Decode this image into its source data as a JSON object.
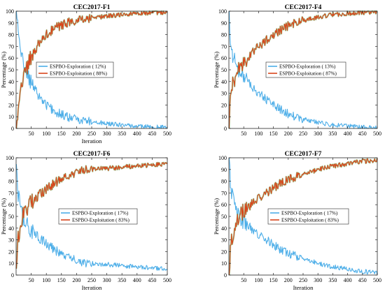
{
  "colors": {
    "exploration": "#4daee8",
    "exploitation": "#d9451b",
    "exploitation_glow": "#4caf50",
    "axis": "#262626"
  },
  "chart_data": [
    {
      "type": "line",
      "title": "CEC2017-F1",
      "xlabel": "Iteration",
      "ylabel": "Percentage (%)",
      "xlim": [
        0,
        500
      ],
      "ylim": [
        0,
        100
      ],
      "xticks": [
        50,
        100,
        150,
        200,
        250,
        300,
        350,
        400,
        450,
        500
      ],
      "yticks": [
        0,
        10,
        20,
        30,
        40,
        50,
        60,
        70,
        80,
        90,
        100
      ],
      "grid": false,
      "legend_position": "center",
      "series": [
        {
          "name": "ESPBO-Exploration ( 12%)",
          "x": [
            1,
            5,
            10,
            20,
            30,
            40,
            50,
            75,
            100,
            125,
            150,
            175,
            200,
            250,
            300,
            350,
            400,
            450,
            500
          ],
          "values": [
            100,
            88,
            76,
            60,
            52,
            45,
            38,
            28,
            20,
            15,
            12,
            9,
            8,
            6,
            4,
            3,
            2,
            1,
            1
          ]
        },
        {
          "name": "ESPBO-Exploitation ( 88%)",
          "x": [
            1,
            5,
            10,
            20,
            30,
            40,
            50,
            75,
            100,
            125,
            150,
            175,
            200,
            250,
            300,
            350,
            400,
            450,
            500
          ],
          "values": [
            0,
            12,
            24,
            40,
            48,
            55,
            62,
            72,
            80,
            85,
            88,
            91,
            92,
            94,
            96,
            97,
            98,
            99,
            99
          ]
        }
      ]
    },
    {
      "type": "line",
      "title": "CEC2017-F4",
      "xlabel": "",
      "ylabel": "Percentage (%)",
      "xlim": [
        0,
        500
      ],
      "ylim": [
        0,
        100
      ],
      "xticks": [
        50,
        100,
        150,
        200,
        250,
        300,
        350,
        400,
        450,
        500
      ],
      "yticks": [
        0,
        10,
        20,
        30,
        40,
        50,
        60,
        70,
        80,
        90,
        100
      ],
      "grid": false,
      "legend_position": "center-right",
      "series": [
        {
          "name": "ESPBO-Exploration ( 13%)",
          "x": [
            1,
            5,
            10,
            20,
            30,
            40,
            50,
            75,
            100,
            125,
            150,
            175,
            200,
            250,
            300,
            350,
            400,
            450,
            500
          ],
          "values": [
            100,
            75,
            65,
            58,
            52,
            48,
            43,
            37,
            30,
            25,
            20,
            16,
            12,
            8,
            5,
            3,
            2,
            1,
            1
          ]
        },
        {
          "name": "ESPBO-Exploitation ( 87%)",
          "x": [
            1,
            5,
            10,
            20,
            30,
            40,
            50,
            75,
            100,
            125,
            150,
            175,
            200,
            250,
            300,
            350,
            400,
            450,
            500
          ],
          "values": [
            0,
            25,
            35,
            42,
            48,
            52,
            57,
            63,
            70,
            75,
            80,
            84,
            88,
            92,
            95,
            97,
            98,
            99,
            99
          ]
        }
      ]
    },
    {
      "type": "line",
      "title": "CEC2017-F6",
      "xlabel": "Iteration",
      "ylabel": "Percentage (%)",
      "xlim": [
        0,
        500
      ],
      "ylim": [
        0,
        100
      ],
      "xticks": [
        50,
        100,
        150,
        200,
        250,
        300,
        350,
        400,
        450,
        500
      ],
      "yticks": [
        0,
        10,
        20,
        30,
        40,
        50,
        60,
        70,
        80,
        90,
        100
      ],
      "grid": false,
      "legend_position": "center",
      "series": [
        {
          "name": "ESPBO-Exploration ( 17%)",
          "x": [
            1,
            5,
            10,
            20,
            30,
            40,
            50,
            75,
            100,
            125,
            150,
            175,
            200,
            250,
            300,
            350,
            400,
            450,
            500
          ],
          "values": [
            100,
            72,
            64,
            50,
            45,
            42,
            38,
            32,
            27,
            22,
            18,
            15,
            12,
            10,
            9,
            8,
            7,
            6,
            6
          ]
        },
        {
          "name": "ESPBO-Exploitation ( 83%)",
          "x": [
            1,
            5,
            10,
            20,
            30,
            40,
            50,
            75,
            100,
            125,
            150,
            175,
            200,
            250,
            300,
            350,
            400,
            450,
            500
          ],
          "values": [
            0,
            28,
            36,
            50,
            55,
            58,
            62,
            68,
            73,
            78,
            82,
            85,
            88,
            90,
            91,
            92,
            93,
            94,
            94
          ]
        }
      ]
    },
    {
      "type": "line",
      "title": "CEC2017-F7",
      "xlabel": "Iteration",
      "ylabel": "Percentage (%)",
      "xlim": [
        0,
        500
      ],
      "ylim": [
        0,
        100
      ],
      "xticks": [
        50,
        100,
        150,
        200,
        250,
        300,
        350,
        400,
        450,
        500
      ],
      "yticks": [
        0,
        10,
        20,
        30,
        40,
        50,
        60,
        70,
        80,
        90,
        100
      ],
      "grid": false,
      "legend_position": "center-right",
      "series": [
        {
          "name": "ESPBO-Exploration ( 17%)",
          "x": [
            1,
            5,
            10,
            20,
            30,
            40,
            50,
            75,
            100,
            125,
            150,
            175,
            200,
            250,
            300,
            350,
            400,
            450,
            500
          ],
          "values": [
            100,
            78,
            70,
            60,
            52,
            48,
            45,
            40,
            35,
            30,
            26,
            22,
            19,
            14,
            10,
            7,
            5,
            3,
            2
          ]
        },
        {
          "name": "ESPBO-Exploitation ( 83%)",
          "x": [
            1,
            5,
            10,
            20,
            30,
            40,
            50,
            75,
            100,
            125,
            150,
            175,
            200,
            250,
            300,
            350,
            400,
            450,
            500
          ],
          "values": [
            0,
            22,
            30,
            40,
            48,
            52,
            55,
            60,
            65,
            70,
            74,
            78,
            81,
            86,
            90,
            93,
            95,
            97,
            98
          ]
        }
      ]
    }
  ]
}
